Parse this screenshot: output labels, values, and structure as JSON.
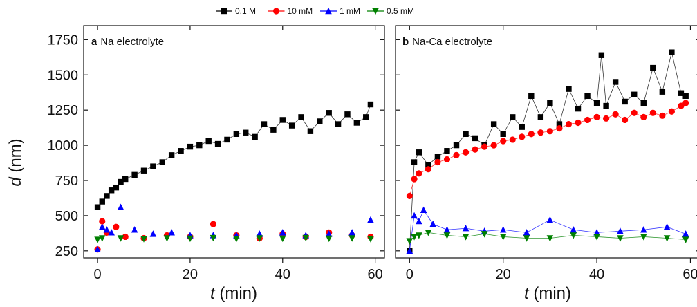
{
  "figure": {
    "legend": [
      {
        "name": "0.1 M",
        "color": "#000000",
        "marker": "square"
      },
      {
        "name": "10 mM",
        "color": "#ff0000",
        "marker": "circle"
      },
      {
        "name": "1 mM",
        "color": "#0000ff",
        "marker": "triangle-up"
      },
      {
        "name": "0.5 mM",
        "color": "#008000",
        "marker": "triangle-down"
      }
    ],
    "y_axis": {
      "label_italic": "d",
      "label_rest": " (nm)"
    },
    "x_axis": {
      "label_italic": "t",
      "label_rest": " (min)"
    }
  },
  "chart_data": [
    {
      "type": "scatter",
      "panel_letter": "a",
      "title": "Na electrolyte",
      "xlabel": "t (min)",
      "ylabel": "d (nm)",
      "xlim": [
        -3,
        62
      ],
      "ylim": [
        200,
        1850
      ],
      "xticks": [
        0,
        20,
        40,
        60
      ],
      "yticks": [
        250,
        500,
        750,
        1000,
        1250,
        1500,
        1750
      ],
      "grid": false,
      "legend_placement": "top",
      "series": [
        {
          "name": "0.1 M",
          "color": "#000000",
          "marker": "square",
          "connected": true,
          "x": [
            0,
            1,
            2,
            3,
            4,
            5,
            6,
            8,
            10,
            12,
            14,
            16,
            18,
            20,
            22,
            24,
            26,
            28,
            30,
            32,
            34,
            36,
            38,
            40,
            42,
            44,
            46,
            48,
            50,
            52,
            54,
            56,
            58,
            59
          ],
          "y": [
            560,
            600,
            640,
            680,
            700,
            740,
            760,
            790,
            820,
            850,
            880,
            930,
            960,
            990,
            1000,
            1030,
            1010,
            1040,
            1080,
            1090,
            1060,
            1150,
            1110,
            1180,
            1140,
            1200,
            1100,
            1170,
            1230,
            1150,
            1220,
            1160,
            1200,
            1290
          ]
        },
        {
          "name": "10 mM",
          "color": "#ff0000",
          "marker": "circle",
          "connected": false,
          "x": [
            0,
            1,
            2,
            4,
            6,
            10,
            15,
            20,
            25,
            30,
            35,
            40,
            45,
            50,
            55,
            59
          ],
          "y": [
            260,
            460,
            380,
            420,
            350,
            340,
            360,
            350,
            440,
            360,
            340,
            370,
            350,
            380,
            360,
            350
          ]
        },
        {
          "name": "1 mM",
          "color": "#0000ff",
          "marker": "triangle-up",
          "connected": false,
          "x": [
            0,
            1,
            2,
            3,
            5,
            8,
            12,
            16,
            20,
            25,
            30,
            35,
            40,
            45,
            50,
            55,
            59
          ],
          "y": [
            260,
            420,
            400,
            380,
            560,
            400,
            370,
            380,
            360,
            360,
            360,
            370,
            380,
            360,
            370,
            380,
            470
          ]
        },
        {
          "name": "0.5 mM",
          "color": "#008000",
          "marker": "triangle-down",
          "connected": false,
          "x": [
            0,
            1,
            5,
            10,
            15,
            20,
            25,
            30,
            35,
            40,
            45,
            50,
            55,
            59
          ],
          "y": [
            330,
            340,
            340,
            335,
            340,
            338,
            342,
            336,
            340,
            338,
            342,
            338,
            340,
            335
          ]
        }
      ]
    },
    {
      "type": "scatter",
      "panel_letter": "b",
      "title": "Na-Ca electrolyte",
      "xlabel": "t (min)",
      "ylabel": "d (nm)",
      "xlim": [
        -3,
        62
      ],
      "ylim": [
        200,
        1850
      ],
      "xticks": [
        0,
        20,
        40,
        60
      ],
      "yticks": [
        250,
        500,
        750,
        1000,
        1250,
        1500,
        1750
      ],
      "grid": false,
      "series": [
        {
          "name": "0.1 M",
          "color": "#000000",
          "marker": "square",
          "connected": true,
          "x": [
            0,
            1,
            2,
            4,
            6,
            8,
            10,
            12,
            14,
            16,
            18,
            20,
            22,
            24,
            26,
            28,
            30,
            32,
            34,
            36,
            38,
            40,
            41,
            42,
            44,
            46,
            48,
            50,
            52,
            54,
            56,
            58,
            59
          ],
          "y": [
            250,
            880,
            950,
            860,
            920,
            960,
            1000,
            1080,
            1050,
            1000,
            1150,
            1080,
            1200,
            1130,
            1350,
            1200,
            1300,
            1150,
            1400,
            1260,
            1350,
            1300,
            1640,
            1280,
            1450,
            1310,
            1360,
            1300,
            1550,
            1380,
            1660,
            1370,
            1350
          ]
        },
        {
          "name": "10 mM",
          "color": "#ff0000",
          "marker": "circle",
          "connected": true,
          "x": [
            0,
            1,
            2,
            4,
            6,
            8,
            10,
            12,
            14,
            16,
            18,
            20,
            22,
            24,
            26,
            28,
            30,
            32,
            34,
            36,
            38,
            40,
            42,
            44,
            46,
            48,
            50,
            52,
            54,
            56,
            58,
            59
          ],
          "y": [
            640,
            760,
            800,
            830,
            880,
            900,
            930,
            950,
            970,
            990,
            1000,
            1030,
            1040,
            1060,
            1080,
            1090,
            1100,
            1120,
            1150,
            1160,
            1180,
            1200,
            1190,
            1220,
            1180,
            1230,
            1200,
            1230,
            1210,
            1240,
            1280,
            1300
          ]
        },
        {
          "name": "1 mM",
          "color": "#0000ff",
          "marker": "triangle-up",
          "connected": true,
          "x": [
            0,
            1,
            2,
            3,
            5,
            8,
            12,
            16,
            20,
            25,
            30,
            35,
            40,
            45,
            50,
            55,
            59
          ],
          "y": [
            250,
            500,
            460,
            540,
            440,
            400,
            410,
            390,
            400,
            380,
            470,
            400,
            380,
            390,
            400,
            420,
            370
          ]
        },
        {
          "name": "0.5 mM",
          "color": "#008000",
          "marker": "triangle-down",
          "connected": true,
          "x": [
            0,
            1,
            2,
            4,
            8,
            12,
            16,
            20,
            25,
            30,
            35,
            40,
            45,
            50,
            55,
            59
          ],
          "y": [
            320,
            350,
            360,
            380,
            360,
            350,
            370,
            350,
            340,
            340,
            360,
            350,
            340,
            350,
            340,
            330
          ]
        }
      ]
    }
  ]
}
